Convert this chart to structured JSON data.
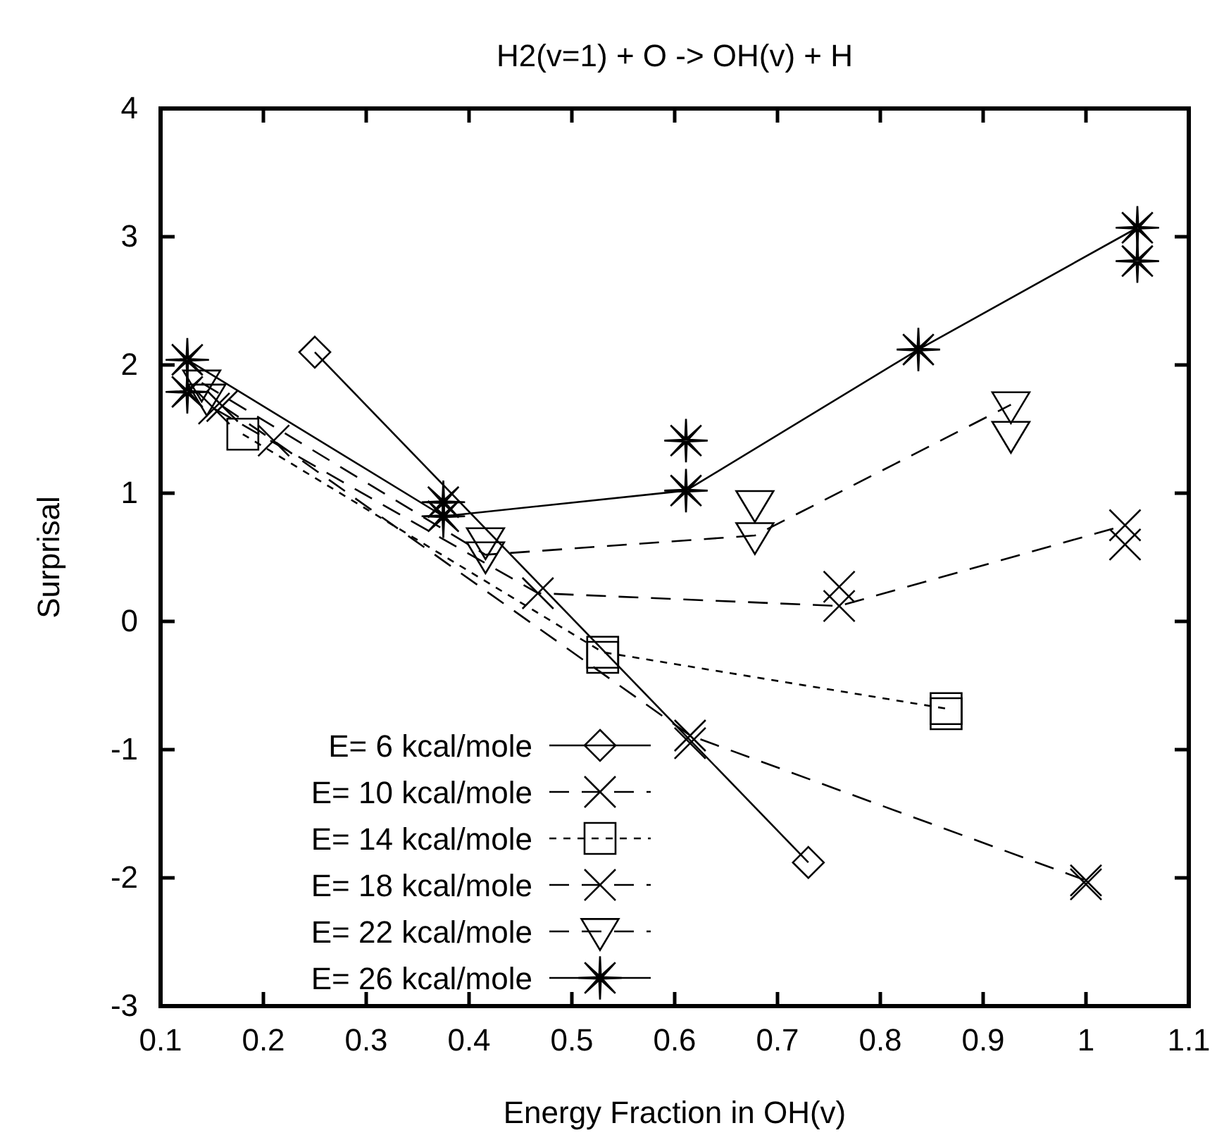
{
  "chart_data": {
    "type": "line",
    "title": "H2(v=1) + O -> OH(v) + H",
    "xlabel": "Energy Fraction in OH(v)",
    "ylabel": "Surprisal",
    "xlim": [
      0.1,
      1.1
    ],
    "xticks": [
      0.1,
      0.2,
      0.3,
      0.4,
      0.5,
      0.6,
      0.7,
      0.8,
      0.9,
      1,
      1.1
    ],
    "ylim": [
      -3,
      4
    ],
    "yticks": [
      -3,
      -2,
      -1,
      0,
      1,
      2,
      3,
      4
    ],
    "grid": false,
    "legend": "bottom left",
    "series": [
      {
        "name": "E= 6 kcal/mole",
        "color": "#000000",
        "marker": "diamond",
        "line_style": "solid",
        "x": [
          0.25,
          0.73
        ],
        "values": [
          2.1,
          -1.88
        ]
      },
      {
        "name": "E= 10 kcal/mole",
        "color": "#000000",
        "marker": "cross",
        "line_style": "dashed",
        "x": [
          0.16,
          0.21,
          0.615,
          1.0
        ],
        "values": [
          1.68,
          1.41,
          -0.89,
          -2.02
        ]
      },
      {
        "name": "E= 14 kcal/mole",
        "color": "#000000",
        "marker": "square",
        "line_style": "dotted",
        "x": [
          0.18,
          0.53,
          0.864
        ],
        "values": [
          1.46,
          -0.24,
          -0.68
        ]
      },
      {
        "name": "E= 18 kcal/mole",
        "color": "#000000",
        "marker": "cross",
        "line_style": "dashed",
        "x": [
          0.152,
          0.467,
          0.76,
          1.038
        ],
        "values": [
          1.66,
          0.22,
          0.12,
          0.75
        ]
      },
      {
        "name": "E= 22 kcal/mole",
        "color": "#000000",
        "marker": "triangle",
        "line_style": "dashed",
        "x": [
          0.14,
          0.416,
          0.678,
          0.927
        ],
        "values": [
          1.86,
          0.52,
          0.67,
          1.69
        ]
      },
      {
        "name": "E= 26 kcal/mole",
        "color": "#000000",
        "marker": "star",
        "line_style": "solid",
        "x": [
          0.126,
          0.375,
          0.611,
          0.837,
          1.05
        ],
        "values": [
          2.04,
          0.82,
          1.02,
          2.12,
          3.07
        ]
      },
      {
        "type": "scatter",
        "color": "#000000",
        "marker": "cross",
        "x": [
          0.615,
          1.0
        ],
        "values": [
          -0.95,
          -2.05
        ]
      },
      {
        "type": "scatter",
        "color": "#000000",
        "marker": "square",
        "x": [
          0.53,
          0.864
        ],
        "values": [
          -0.28,
          -0.72
        ]
      },
      {
        "type": "scatter",
        "color": "#000000",
        "marker": "cross",
        "x": [
          0.76,
          1.038
        ],
        "values": [
          0.27,
          0.6
        ]
      },
      {
        "type": "scatter",
        "color": "#000000",
        "marker": "triangle",
        "x": [
          0.145,
          0.416,
          0.678,
          0.927
        ],
        "values": [
          1.75,
          0.63,
          0.92,
          1.46
        ]
      },
      {
        "type": "scatter",
        "color": "#000000",
        "marker": "star",
        "x": [
          0.126,
          0.375,
          0.611,
          1.05
        ],
        "values": [
          1.79,
          0.93,
          1.41,
          2.81
        ]
      }
    ]
  }
}
